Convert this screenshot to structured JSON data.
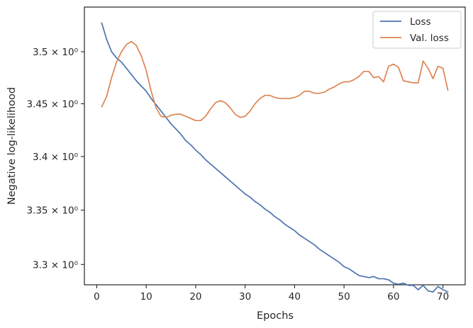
{
  "chart_data": {
    "type": "line",
    "xlabel": "Epochs",
    "ylabel": "Negative log-likelihood",
    "xlim": [
      -2.5,
      74.5
    ],
    "ylim": [
      3.2815,
      3.5435
    ],
    "y_scale": "log",
    "grid": false,
    "legend_position": "top-right",
    "x_ticks": [
      0,
      10,
      20,
      30,
      40,
      50,
      60,
      70
    ],
    "y_ticks": [
      {
        "value": 3.3,
        "label": "3.3 × 10⁰"
      },
      {
        "value": 3.35,
        "label": "3.35 × 10⁰"
      },
      {
        "value": 3.4,
        "label": "3.4 × 10⁰"
      },
      {
        "value": 3.45,
        "label": "3.45 × 10⁰"
      },
      {
        "value": 3.5,
        "label": "3.5 × 10⁰"
      }
    ],
    "series": [
      {
        "name": "Loss",
        "color": "#4c72b0",
        "x": [
          1,
          2,
          3,
          4,
          5,
          6,
          7,
          8,
          9,
          10,
          11,
          12,
          13,
          14,
          15,
          16,
          17,
          18,
          19,
          20,
          21,
          22,
          23,
          24,
          25,
          26,
          27,
          28,
          29,
          30,
          31,
          32,
          33,
          34,
          35,
          36,
          37,
          38,
          39,
          40,
          41,
          42,
          43,
          44,
          45,
          46,
          47,
          48,
          49,
          50,
          51,
          52,
          53,
          54,
          55,
          56,
          57,
          58,
          59,
          60,
          61,
          62,
          63,
          64,
          65,
          66,
          67,
          68,
          69,
          70,
          71
        ],
        "values": [
          3.528,
          3.512,
          3.5,
          3.494,
          3.49,
          3.484,
          3.478,
          3.472,
          3.467,
          3.462,
          3.455,
          3.449,
          3.443,
          3.437,
          3.431,
          3.426,
          3.421,
          3.415,
          3.411,
          3.406,
          3.402,
          3.397,
          3.393,
          3.389,
          3.385,
          3.381,
          3.377,
          3.373,
          3.369,
          3.365,
          3.362,
          3.358,
          3.355,
          3.351,
          3.348,
          3.344,
          3.341,
          3.337,
          3.334,
          3.331,
          3.327,
          3.324,
          3.321,
          3.318,
          3.314,
          3.311,
          3.308,
          3.305,
          3.302,
          3.298,
          3.296,
          3.293,
          3.29,
          3.289,
          3.288,
          3.289,
          3.287,
          3.287,
          3.286,
          3.283,
          3.282,
          3.283,
          3.281,
          3.281,
          3.277,
          3.281,
          3.276,
          3.275,
          3.28,
          3.277,
          3.275
        ]
      },
      {
        "name": "Val. loss",
        "color": "#dd8452",
        "x": [
          1,
          2,
          3,
          4,
          5,
          6,
          7,
          8,
          9,
          10,
          11,
          12,
          13,
          14,
          15,
          16,
          17,
          18,
          19,
          20,
          21,
          22,
          23,
          24,
          25,
          26,
          27,
          28,
          29,
          30,
          31,
          32,
          33,
          34,
          35,
          36,
          37,
          38,
          39,
          40,
          41,
          42,
          43,
          44,
          45,
          46,
          47,
          48,
          49,
          50,
          51,
          52,
          53,
          54,
          55,
          56,
          57,
          58,
          59,
          60,
          61,
          62,
          63,
          64,
          65,
          66,
          67,
          68,
          69,
          70,
          71
        ],
        "values": [
          3.447,
          3.457,
          3.475,
          3.49,
          3.5,
          3.507,
          3.51,
          3.506,
          3.496,
          3.482,
          3.462,
          3.446,
          3.438,
          3.437,
          3.439,
          3.44,
          3.44,
          3.438,
          3.436,
          3.434,
          3.434,
          3.438,
          3.445,
          3.451,
          3.453,
          3.451,
          3.446,
          3.44,
          3.437,
          3.438,
          3.443,
          3.45,
          3.455,
          3.458,
          3.458,
          3.456,
          3.455,
          3.455,
          3.455,
          3.456,
          3.458,
          3.462,
          3.462,
          3.46,
          3.46,
          3.461,
          3.464,
          3.466,
          3.469,
          3.471,
          3.471,
          3.473,
          3.476,
          3.481,
          3.481,
          3.475,
          3.476,
          3.471,
          3.486,
          3.488,
          3.485,
          3.472,
          3.471,
          3.47,
          3.47,
          3.491,
          3.484,
          3.474,
          3.486,
          3.484,
          3.463
        ]
      }
    ]
  }
}
